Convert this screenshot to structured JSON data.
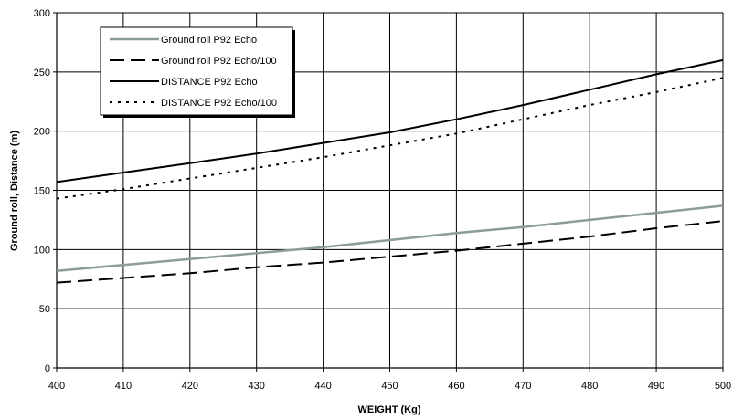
{
  "chart_data": {
    "type": "line",
    "title": "",
    "xlabel": "WEIGHT (Kg)",
    "ylabel": "Ground roll, Distance (m)",
    "xlim": [
      400,
      500
    ],
    "ylim": [
      0,
      300
    ],
    "x_ticks": [
      400,
      410,
      420,
      430,
      440,
      450,
      460,
      470,
      480,
      490,
      500
    ],
    "y_ticks": [
      0,
      50,
      100,
      150,
      200,
      250,
      300
    ],
    "grid": true,
    "legend_position": "top-left",
    "x": [
      400,
      410,
      420,
      430,
      440,
      450,
      460,
      470,
      480,
      490,
      500
    ],
    "series": [
      {
        "name": "Ground roll P92 Echo",
        "style": "gray-solid",
        "color": "#8c9c9c",
        "values": [
          82,
          87,
          92,
          97,
          102,
          108,
          114,
          119,
          125,
          131,
          137
        ]
      },
      {
        "name": "Ground roll P92 Echo/100",
        "style": "long-dash",
        "color": "#000000",
        "values": [
          72,
          76,
          80,
          85,
          89,
          94,
          99,
          105,
          111,
          118,
          124
        ]
      },
      {
        "name": "DISTANCE P92 Echo",
        "style": "solid",
        "color": "#000000",
        "values": [
          157,
          165,
          173,
          181,
          190,
          199,
          210,
          222,
          235,
          248,
          260
        ]
      },
      {
        "name": "DISTANCE P92 Echo/100",
        "style": "dotted",
        "color": "#000000",
        "values": [
          143,
          151,
          160,
          169,
          178,
          188,
          198,
          210,
          222,
          233,
          245
        ]
      }
    ]
  }
}
